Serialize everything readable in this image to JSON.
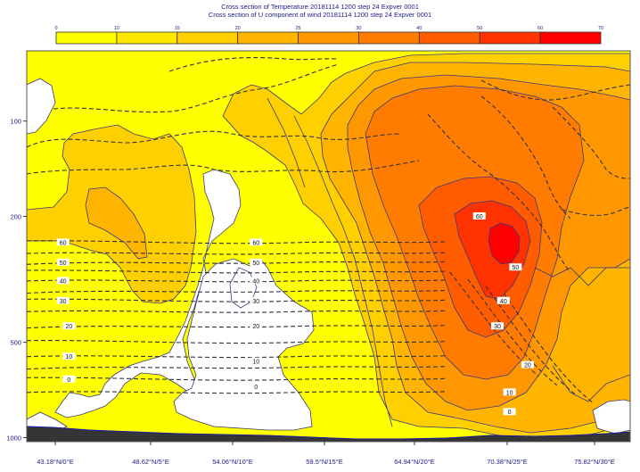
{
  "chart_data": {
    "type": "cross-section",
    "title_lines": [
      "Cross section of Temperature 20181114 1200 step 24 Expver 0001",
      "Cross section of U component of wind 20181114 1200 step 24 Expver 0001"
    ],
    "colorbar": {
      "ticks": [
        "0",
        "10",
        "15",
        "20",
        "25",
        "30",
        "40",
        "50",
        "60",
        "70"
      ],
      "colors": [
        "#ffff00",
        "#ffe800",
        "#ffd000",
        "#ffb400",
        "#ff9800",
        "#ff7c00",
        "#ff5c00",
        "#ff3200",
        "#ff0000"
      ]
    },
    "y_axis": {
      "ticks": [
        100,
        200,
        500,
        1000
      ],
      "scale": "log",
      "range": [
        60,
        1030
      ],
      "inverted": true
    },
    "x_axis": {
      "ticks": [
        "43.18°N/0°E",
        "48.62°N/5°E",
        "54.06°N/10°E",
        "59.5°N/15°E",
        "64.94°N/20°E",
        "70.38°N/25°E",
        "75.82°N/30°E"
      ]
    },
    "wind_contour_labels": [
      {
        "text": "60",
        "x": 0.06,
        "p": 242
      },
      {
        "text": "50",
        "x": 0.06,
        "p": 280
      },
      {
        "text": "40",
        "x": 0.06,
        "p": 320
      },
      {
        "text": "30",
        "x": 0.06,
        "p": 370
      },
      {
        "text": "20",
        "x": 0.07,
        "p": 445
      },
      {
        "text": "10",
        "x": 0.07,
        "p": 555
      },
      {
        "text": "0",
        "x": 0.07,
        "p": 655
      },
      {
        "text": "60",
        "x": 0.38,
        "p": 242
      },
      {
        "text": "50",
        "x": 0.38,
        "p": 280
      },
      {
        "text": "40",
        "x": 0.38,
        "p": 320
      },
      {
        "text": "30",
        "x": 0.38,
        "p": 370
      },
      {
        "text": "20",
        "x": 0.38,
        "p": 445
      },
      {
        "text": "10",
        "x": 0.38,
        "p": 575
      },
      {
        "text": "0",
        "x": 0.38,
        "p": 690
      },
      {
        "text": "60",
        "x": 0.75,
        "p": 200
      },
      {
        "text": "50",
        "x": 0.81,
        "p": 290
      },
      {
        "text": "40",
        "x": 0.79,
        "p": 370
      },
      {
        "text": "30",
        "x": 0.78,
        "p": 445
      },
      {
        "text": "20",
        "x": 0.83,
        "p": 590
      },
      {
        "text": "10",
        "x": 0.8,
        "p": 720
      },
      {
        "text": "0",
        "x": 0.8,
        "p": 830
      }
    ]
  }
}
